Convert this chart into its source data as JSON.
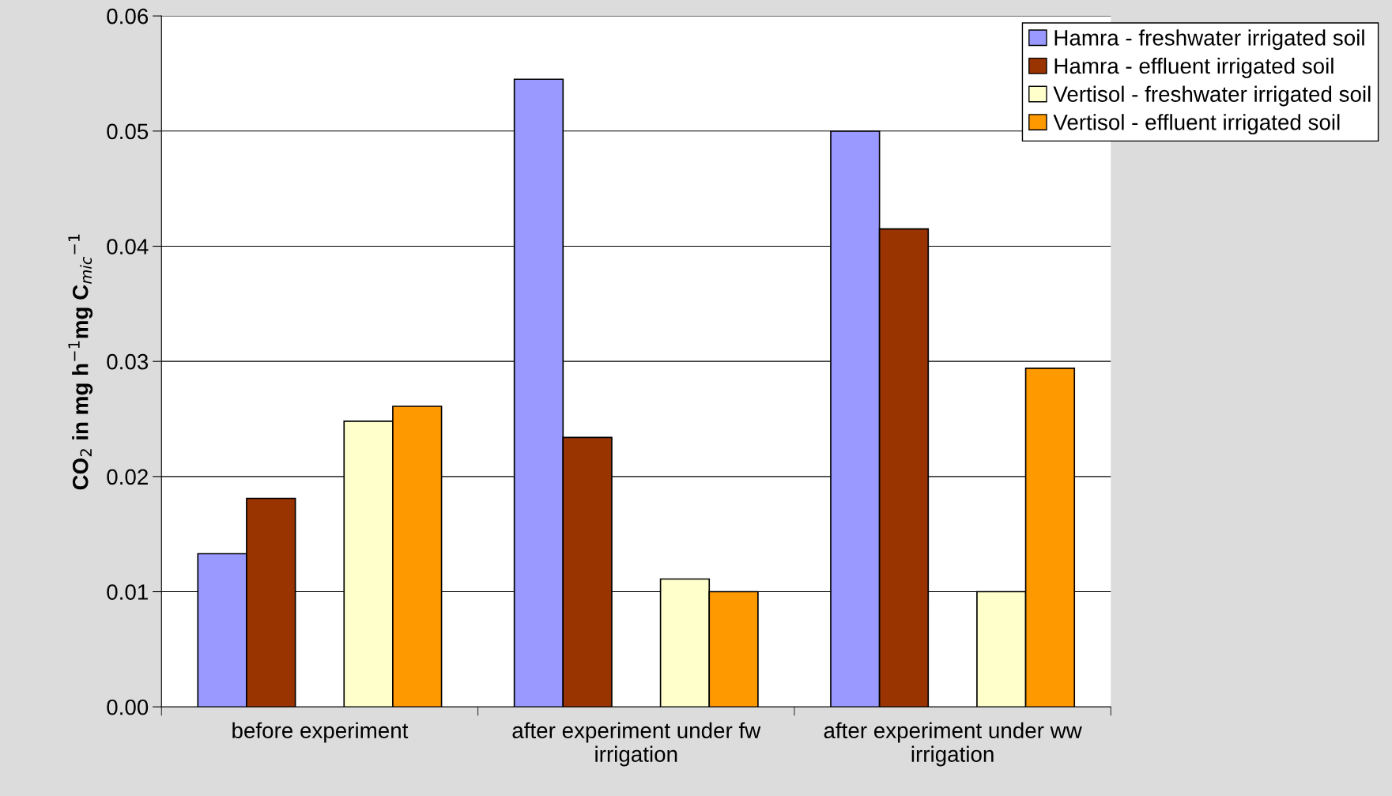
{
  "chart_data": {
    "type": "bar",
    "ylabel": "CO$_{2}$ in mg h$^{−1}$mg C$_{mic}$$^{−1}$",
    "categories": [
      "before experiment",
      "after experiment under fw irrigation",
      "after experiment under ww irrigation"
    ],
    "series": [
      {
        "name": "Hamra - freshwater irrigated soil",
        "color": "#9999ff",
        "values": [
          0.0133,
          0.0545,
          0.05
        ]
      },
      {
        "name": "Hamra - effluent irrigated soil",
        "color": "#993300",
        "values": [
          0.0181,
          0.0234,
          0.0415
        ]
      },
      {
        "name": "Vertisol - freshwater irrigated soil",
        "color": "#ffffcc",
        "values": [
          0.0248,
          0.0111,
          0.01
        ]
      },
      {
        "name": "Vertisol - effluent irrigated soil",
        "color": "#ff9900",
        "values": [
          0.0261,
          0.01,
          0.0294
        ]
      }
    ],
    "ylim": [
      0,
      0.06
    ],
    "yticks": [
      {
        "value": 0,
        "label": "0.00"
      },
      0.01,
      0.02,
      0.03,
      0.04,
      0.05,
      0.06
    ],
    "grid": "y",
    "legend": "top right"
  }
}
